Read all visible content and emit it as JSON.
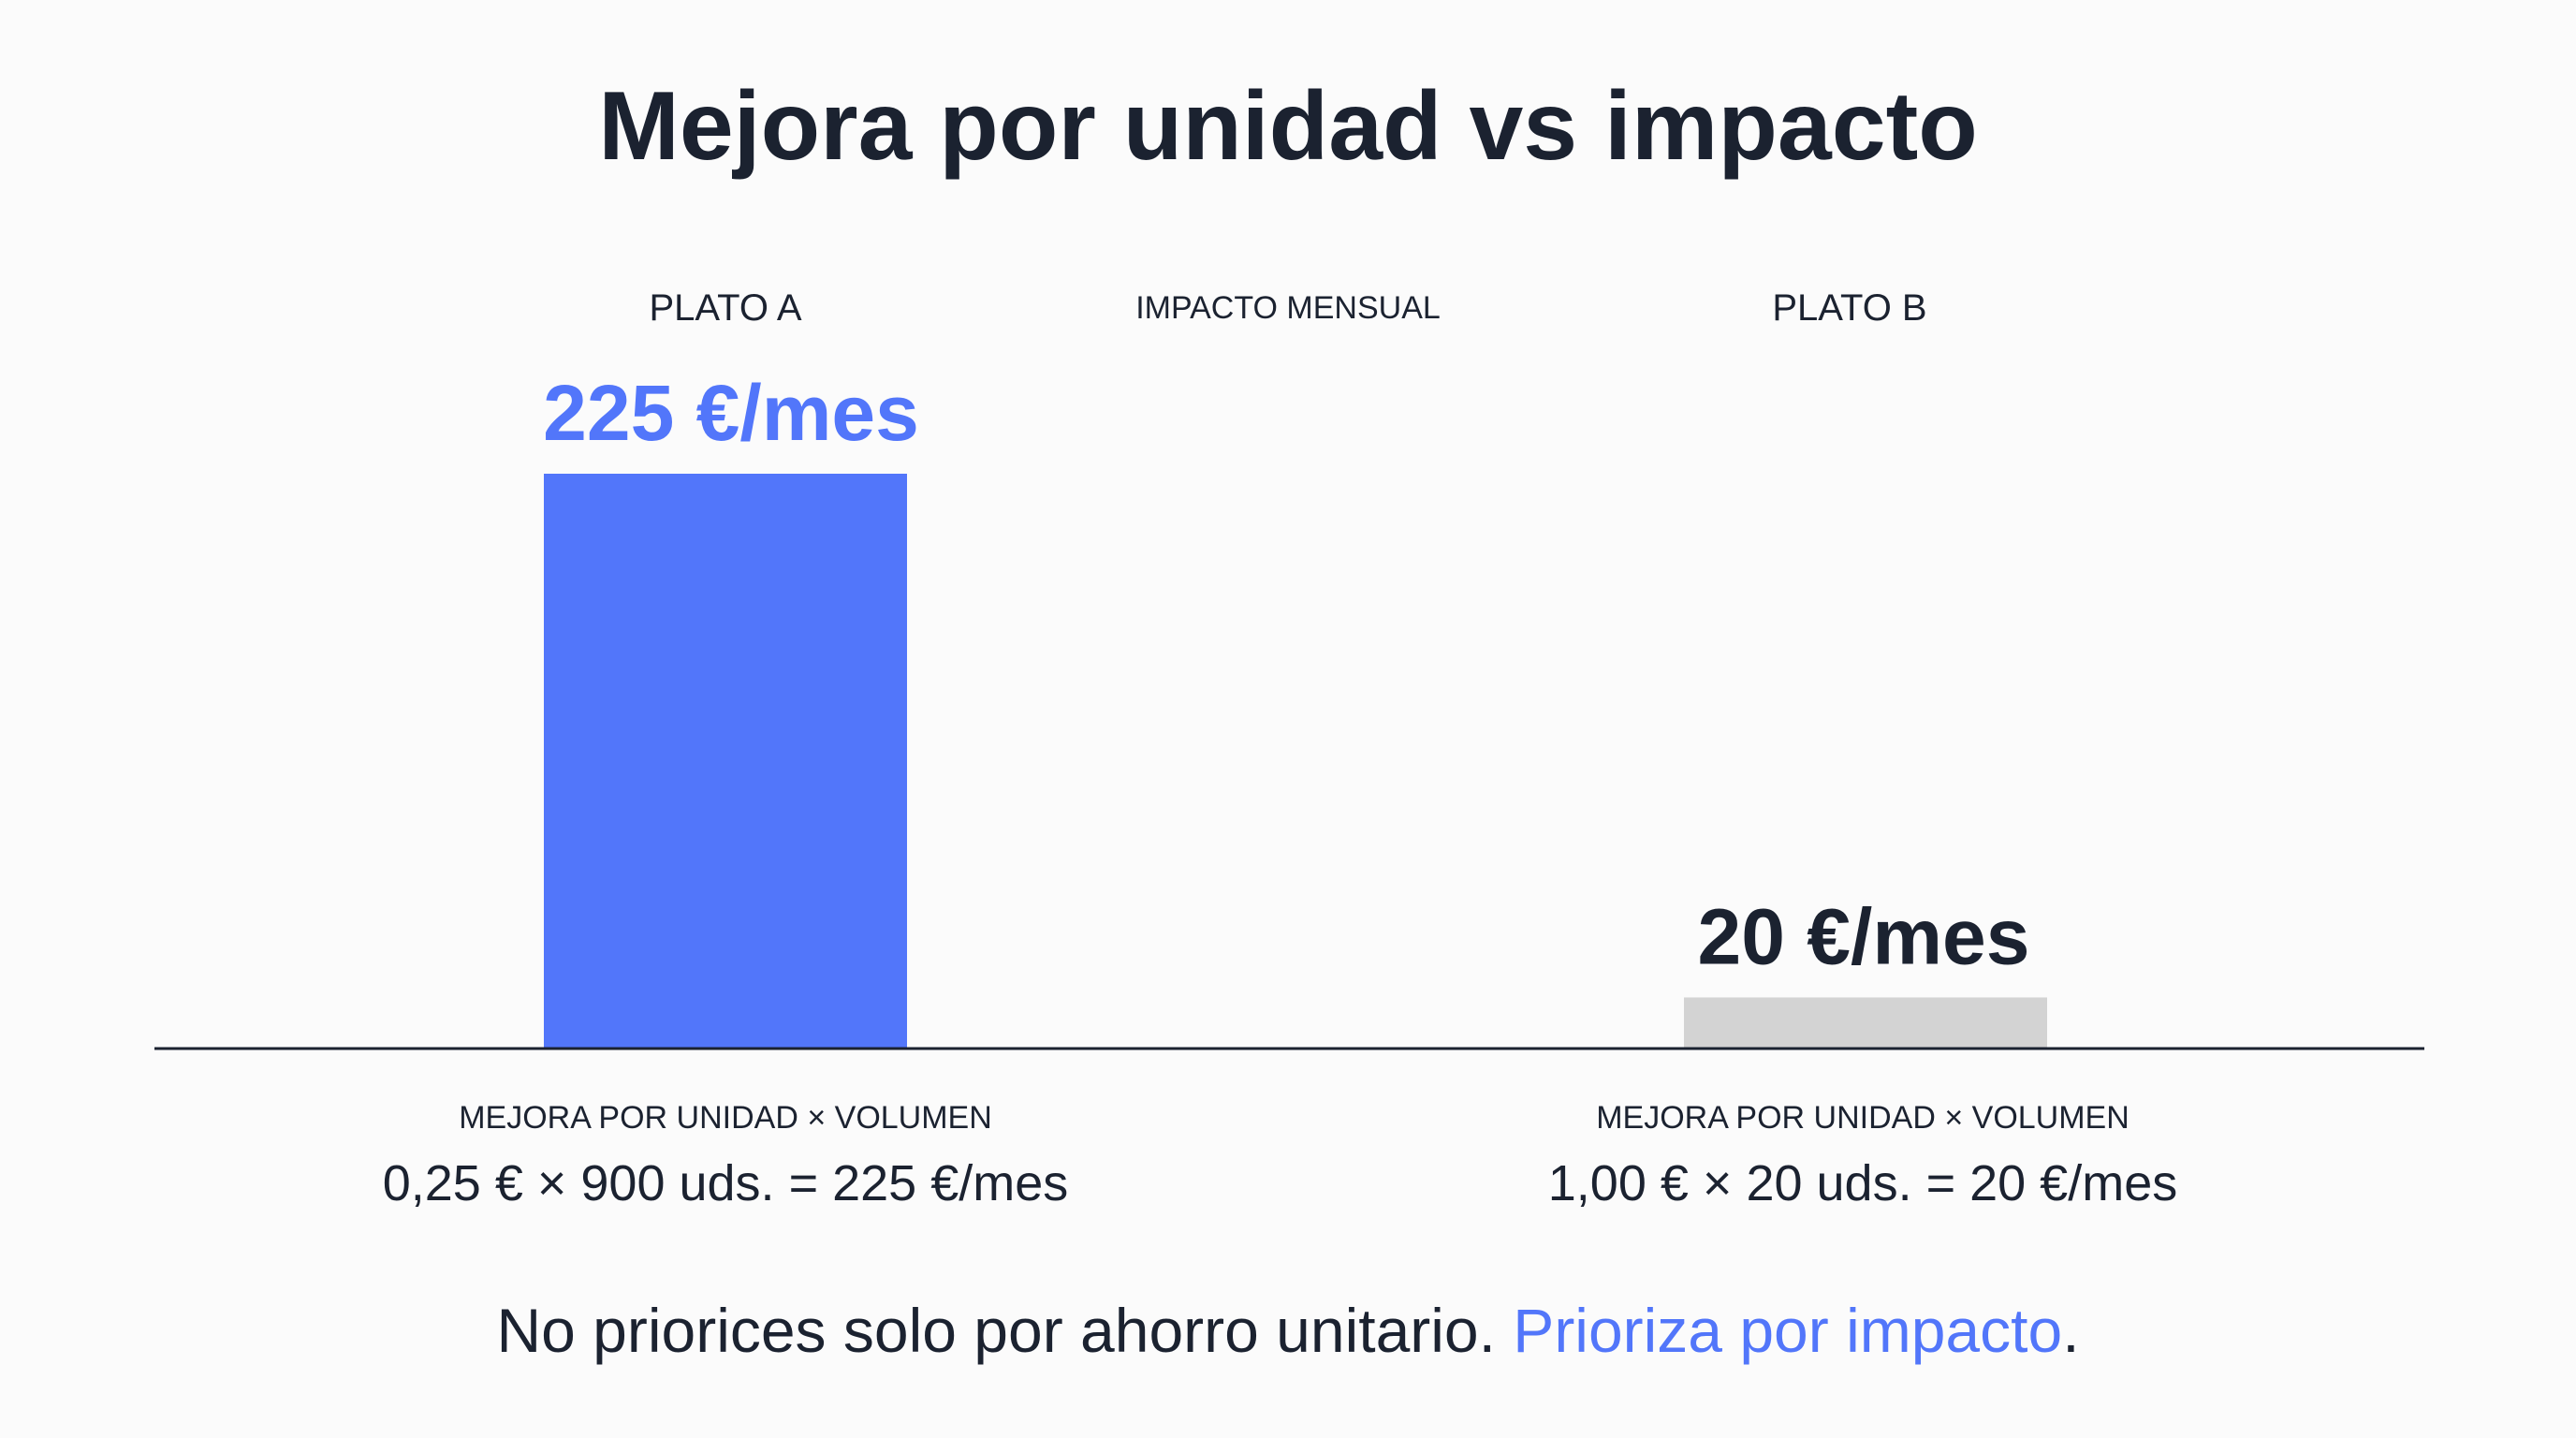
{
  "chart_data": {
    "type": "bar",
    "title": "Mejora por unidad vs impacto",
    "center_label": "IMPACTO MENSUAL",
    "categories": [
      "PLATO A",
      "PLATO B"
    ],
    "values": [
      225,
      20
    ],
    "value_labels": [
      "225 €/mes",
      "20 €/mes"
    ],
    "formula_caption": "MEJORA POR UNIDAD × VOLUMEN",
    "formulas": [
      "0,25 € × 900 uds. = 225 €/mes",
      "1,00 € × 20 uds. = 20 €/mes"
    ],
    "unit_savings": [
      0.25,
      1.0
    ],
    "volumes": [
      900,
      20
    ],
    "bar_colors": [
      "#5276fa",
      "#d3d3d3"
    ],
    "value_label_colors": [
      "#5276fa",
      "#1b2230"
    ],
    "ylim": [
      0,
      225
    ]
  },
  "footer": {
    "text": "No priorices solo por ahorro unitario. ",
    "highlight": "Prioriza por impacto",
    "end": "."
  },
  "colors": {
    "accent": "#5276fa",
    "text": "#1b2230",
    "muted_bar": "#d3d3d3",
    "background": "#fbfbfb"
  }
}
